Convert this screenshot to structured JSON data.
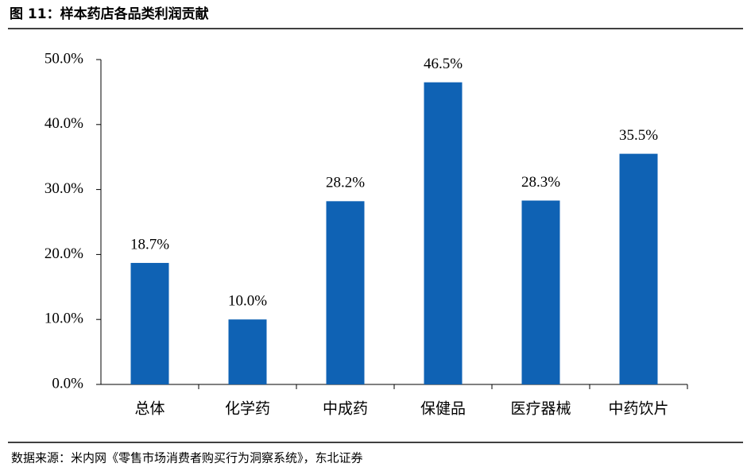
{
  "chart_data": {
    "type": "bar",
    "title": "图 11：样本药店各品类利润贡献",
    "categories": [
      "总体",
      "化学药",
      "中成药",
      "保健品",
      "医疗器械",
      "中药饮片"
    ],
    "values": [
      18.7,
      10.0,
      28.2,
      46.5,
      28.3,
      35.5
    ],
    "value_labels": [
      "18.7%",
      "10.0%",
      "28.2%",
      "46.5%",
      "28.3%",
      "35.5%"
    ],
    "color": "#0f62b4",
    "ylim": [
      0,
      50
    ],
    "yticks": [
      {
        "value": 0,
        "label": "0.0%"
      },
      {
        "value": 10,
        "label": "10.0%"
      },
      {
        "value": 20,
        "label": "20.0%"
      },
      {
        "value": 30,
        "label": "30.0%"
      },
      {
        "value": 40,
        "label": "40.0%"
      },
      {
        "value": 50,
        "label": "50.0%"
      }
    ],
    "grid": false,
    "source": "数据来源：米内网《零售市场消费者购买行为洞察系统》，东北证券"
  }
}
